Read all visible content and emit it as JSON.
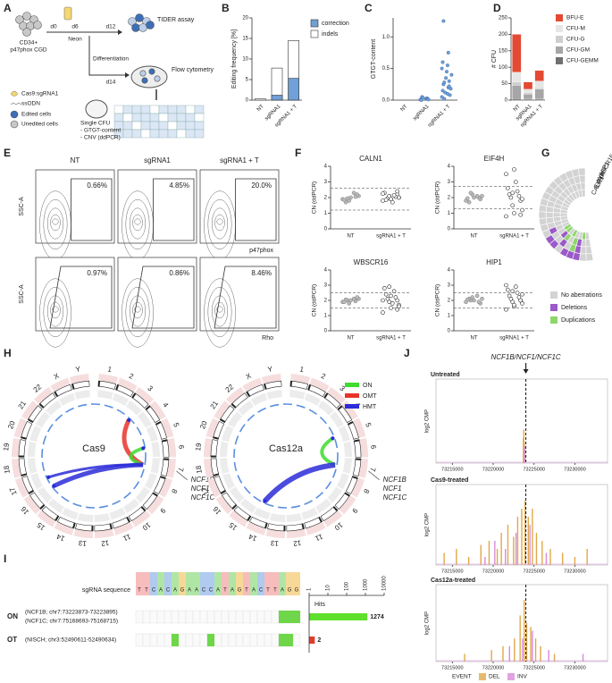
{
  "panels": {
    "A": {
      "label": "A",
      "cells": "CD34+",
      "cells_type": "p47phox CGD",
      "days": [
        "d0",
        "d6",
        "d12"
      ],
      "neon": "Neon",
      "tider": "TIDER assay",
      "differentiation": "Differentiation",
      "d14": "d14",
      "flow": "Flow cytometry",
      "legend": [
        "Cas9:sgRNA1",
        "ssODN",
        "Edited cells",
        "Unedited cells"
      ],
      "single_cfu": [
        "Single CFU",
        "- GTGT-content",
        "- CNV (ddPCR)"
      ]
    },
    "B": {
      "label": "B",
      "type": "bar",
      "y_label": "Editing frequency [%]",
      "categories": [
        "NT",
        "sgRNA1",
        "sgRNA1 + T"
      ],
      "series": [
        {
          "name": "correction",
          "color": "#6fa0d8",
          "values": [
            0,
            1.2,
            5.3
          ]
        },
        {
          "name": "indels",
          "color": "#ffffff",
          "values": [
            0.3,
            7.8,
            14.5
          ]
        }
      ],
      "ylim": [
        0,
        20
      ],
      "yticks": [
        0,
        5,
        10,
        15,
        20
      ]
    },
    "C": {
      "label": "C",
      "type": "scatter",
      "y_label": "GTGT-content",
      "categories": [
        "NT",
        "sgRNA1",
        "sgRNA1 + T"
      ],
      "color": "#6fa0d8",
      "points": [
        [],
        [
          0.01,
          0.02,
          0.0,
          0.03,
          0.05,
          0.02,
          0.04,
          0.01
        ],
        [
          0.05,
          0.1,
          0.15,
          0.2,
          0.25,
          0.3,
          0.02,
          0.08,
          0.12,
          0.18,
          0.35,
          0.4,
          0.45,
          0.5,
          0.55,
          0.6,
          0.75,
          1.25,
          0.22,
          0.28
        ]
      ],
      "ylim": [
        0,
        1.3
      ],
      "yticks": [
        {
          "value": 0,
          "label": "0.0"
        },
        {
          "value": 0.5,
          "label": "0.5"
        },
        {
          "value": 1,
          "label": "1.0"
        }
      ]
    },
    "D": {
      "label": "D",
      "type": "stacked-bar",
      "y_label": "# CFU",
      "categories": [
        "NT",
        "sgRNA1",
        "sgRNA1 + T"
      ],
      "series": [
        {
          "name": "BFU-E",
          "color": "#e34a33",
          "values": [
            115,
            22,
            32
          ]
        },
        {
          "name": "CFU-M",
          "color": "#e6e6e6",
          "values": [
            30,
            10,
            20
          ]
        },
        {
          "name": "CFU-G",
          "color": "#cfcfcf",
          "values": [
            10,
            5,
            5
          ]
        },
        {
          "name": "CFU-GM",
          "color": "#a6a6a6",
          "values": [
            40,
            15,
            30
          ]
        },
        {
          "name": "CFU-GEMM",
          "color": "#707070",
          "values": [
            5,
            3,
            3
          ]
        }
      ],
      "ylim": [
        0,
        250
      ],
      "yticks": [
        0,
        50,
        100,
        150,
        200,
        250
      ]
    },
    "E": {
      "label": "E",
      "column_titles": [
        "NT",
        "sgRNA1",
        "sgRNA1 + T"
      ],
      "y_label": "SSC-A",
      "x_labels": [
        "p47phox",
        "Rho"
      ],
      "percentages": [
        [
          "0.66%",
          "4.85%",
          "20.0%"
        ],
        [
          "0.97%",
          "0.86%",
          "8.46%"
        ]
      ]
    },
    "F": {
      "label": "F",
      "type": "dot",
      "y_label": "CN (ddPCR)",
      "categories": [
        "NT",
        "sgRNA1 + T"
      ],
      "ylim": [
        0,
        4
      ],
      "yticks": [
        0,
        1,
        2,
        3,
        4
      ],
      "genes": [
        {
          "name": "CALN1",
          "thresholds": [
            1.2,
            2.6
          ],
          "values": [
            [
              1.9,
              2.0,
              2.1,
              1.8,
              2.2,
              1.95,
              2.05,
              1.7,
              2.3,
              1.85
            ],
            [
              1.8,
              1.9,
              2.0,
              2.1,
              2.2,
              1.95,
              2.05,
              1.85,
              2.15,
              2.3,
              1.7,
              2.25,
              1.9,
              2.0,
              2.1,
              2.4
            ]
          ]
        },
        {
          "name": "EIF4H",
          "thresholds": [
            1.3,
            2.7
          ],
          "values": [
            [
              1.8,
              2.0,
              2.1,
              2.2,
              1.9,
              2.3,
              2.0,
              1.7,
              2.1,
              1.95
            ],
            [
              0.8,
              1.0,
              1.2,
              1.5,
              1.8,
              2.0,
              2.1,
              2.2,
              2.4,
              2.6,
              3.0,
              3.5,
              3.8,
              1.9,
              2.3,
              0.9
            ]
          ]
        },
        {
          "name": "WBSCR16",
          "thresholds": [
            1.5,
            2.5
          ],
          "values": [
            [
              1.9,
              2.0,
              2.1,
              1.8,
              2.2,
              2.0,
              1.95,
              2.05,
              2.1,
              1.9
            ],
            [
              1.2,
              1.5,
              1.7,
              1.9,
              2.0,
              2.1,
              2.2,
              2.4,
              2.6,
              2.8,
              1.8,
              2.0,
              2.3,
              1.6,
              2.9,
              1.4
            ]
          ]
        },
        {
          "name": "HIP1",
          "thresholds": [
            1.5,
            2.5
          ],
          "values": [
            [
              1.9,
              2.0,
              2.1,
              2.2,
              1.8,
              2.0,
              1.9,
              2.1,
              2.3,
              2.05
            ],
            [
              1.4,
              1.6,
              1.8,
              1.9,
              2.0,
              2.1,
              2.2,
              2.3,
              2.5,
              2.7,
              2.9,
              3.0,
              1.7,
              2.4,
              2.6,
              2.0
            ]
          ]
        }
      ]
    },
    "G": {
      "label": "G",
      "genes": [
        "CALN1",
        "EIF4H",
        "WBSCR16",
        "HIP1"
      ],
      "legend": [
        {
          "name": "No aberrations",
          "color": "#d3d3d3"
        },
        {
          "name": "Deletions",
          "color": "#9b59c9"
        },
        {
          "name": "Duplications",
          "color": "#8fd66a"
        }
      ],
      "cells": [
        [
          0,
          0,
          0,
          0,
          0,
          0,
          0,
          0,
          0,
          0,
          0,
          0,
          0,
          0,
          2,
          2,
          0,
          2,
          0,
          0,
          2,
          0
        ],
        [
          0,
          0,
          0,
          0,
          0,
          0,
          0,
          0,
          0,
          0,
          0,
          0,
          0,
          0,
          0,
          1,
          2,
          0,
          2,
          1,
          0,
          0
        ],
        [
          0,
          0,
          0,
          0,
          0,
          0,
          0,
          0,
          0,
          0,
          0,
          0,
          0,
          1,
          0,
          0,
          1,
          0,
          2,
          1,
          0,
          0
        ],
        [
          0,
          0,
          0,
          0,
          0,
          0,
          0,
          0,
          0,
          0,
          0,
          0,
          0,
          0,
          1,
          1,
          0,
          1,
          1,
          1,
          0,
          0
        ]
      ]
    },
    "H": {
      "label": "H",
      "titles": [
        "Cas9",
        "Cas12a"
      ],
      "chromosomes": [
        "1",
        "2",
        "3",
        "4",
        "5",
        "6",
        "7",
        "8",
        "9",
        "10",
        "11",
        "12",
        "13",
        "14",
        "15",
        "16",
        "17",
        "18",
        "19",
        "20",
        "21",
        "22",
        "X",
        "Y"
      ],
      "legend": [
        {
          "name": "ON",
          "color": "#3ddc2f"
        },
        {
          "name": "OMT",
          "color": "#e8332a"
        },
        {
          "name": "HMT",
          "color": "#2b2bd8"
        }
      ],
      "genes": [
        "NCF1B",
        "NCF1",
        "NCF1C"
      ]
    },
    "I": {
      "label": "I",
      "sequence_label": "sgRNA sequence",
      "sequence": [
        "T",
        "T",
        "C",
        "A",
        "C",
        "A",
        "G",
        "A",
        "A",
        "C",
        "C",
        "A",
        "T",
        "A",
        "G",
        "T",
        "A",
        "C",
        "T",
        "T",
        "A",
        "G",
        "G"
      ],
      "hits_label": "Hits",
      "xlim": [
        1,
        10000
      ],
      "xticks": [
        1,
        10,
        100,
        1000,
        10000
      ],
      "rows": [
        {
          "label": "ON",
          "details": [
            "(NCF1B; chr7:73223873-73223895)",
            "(NCF1C; chr7:75168693-75168715)"
          ],
          "hits": 1274,
          "color": "#5ee02c",
          "mismatches": [
            20,
            21,
            22
          ]
        },
        {
          "label": "OT",
          "details": [
            "(NISCH; chr3:52490611-52490634)"
          ],
          "hits": 2,
          "color": "#e03b2c",
          "mismatches": [
            5,
            10,
            20,
            21
          ]
        }
      ]
    },
    "J": {
      "label": "J",
      "title": "NCF1B/NCF1/NCF1C",
      "y_label": "log2 CMP",
      "xlim": [
        73213000,
        73234000
      ],
      "xticks": [
        73215000,
        73220000,
        73225000,
        73230000
      ],
      "ylim": [
        0,
        10
      ],
      "marker": 73224000,
      "legend_title": "EVENT",
      "legend": [
        {
          "name": "DEL",
          "color": "#e0a94a"
        },
        {
          "name": "INV",
          "color": "#d98bd9"
        }
      ],
      "panels": [
        {
          "title": "Untreated",
          "series": [
            {
              "x": [
                73223700,
                73223750,
                73223800
              ],
              "values": [
                3,
                4,
                2.5
              ]
            },
            {
              "x": [
                73223850
              ],
              "values": [
                2
              ]
            }
          ]
        },
        {
          "title": "Cas9-treated",
          "series": [
            {
              "x": [
                73214000,
                73215500,
                73217000,
                73218500,
                73219500,
                73220500,
                73221000,
                73221800,
                73222500,
                73223000,
                73223500,
                73223900,
                73224300,
                73224800,
                73225300,
                73226000,
                73227000,
                73228500,
                73230000,
                73231500
              ],
              "values": [
                1.5,
                2,
                1,
                2.5,
                3,
                2,
                4,
                5,
                3.5,
                6,
                7,
                8,
                6,
                7,
                4,
                3,
                2,
                1.5,
                1,
                2
              ]
            },
            {
              "x": [
                73219000,
                73220200,
                73221500,
                73222800,
                73224500,
                73226500
              ],
              "values": [
                1,
                3,
                2,
                4,
                5,
                1.5
              ]
            }
          ]
        },
        {
          "title": "Cas12a-treated",
          "series": [
            {
              "x": [
                73216500,
                73219800,
                73221200,
                73222600,
                73223300,
                73223800,
                73224100,
                73224600,
                73225200,
                73225800,
                73227500
              ],
              "values": [
                1,
                1.5,
                2,
                3,
                6,
                8,
                5,
                4.5,
                3,
                2,
                1
              ]
            },
            {
              "x": [
                73222000,
                73223600,
                73224800,
                73226800,
                73231000
              ],
              "values": [
                2,
                3,
                4,
                1.5,
                1
              ]
            }
          ]
        }
      ]
    }
  }
}
